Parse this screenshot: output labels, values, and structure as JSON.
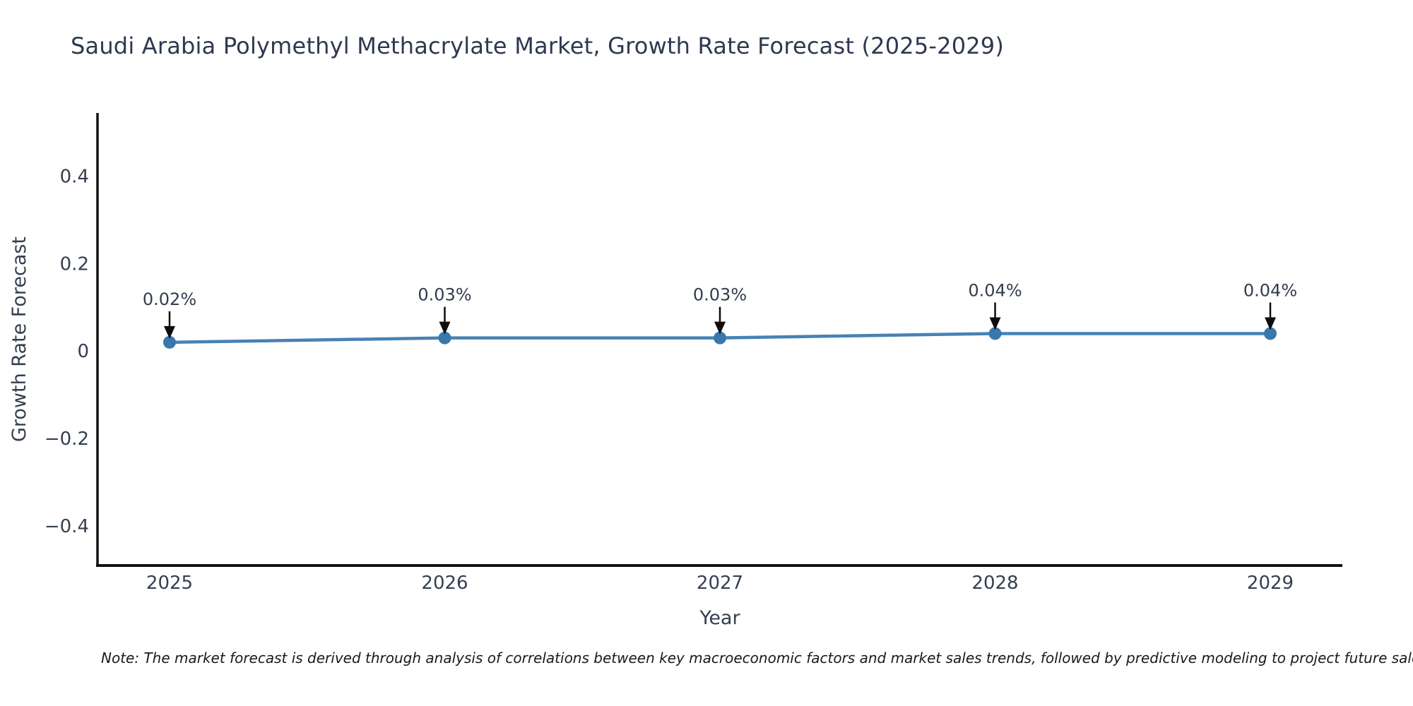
{
  "title": {
    "text": "Saudi Arabia Polymethyl Methacrylate Market, Growth Rate Forecast (2025-2029)",
    "color": "#2e3850"
  },
  "note": {
    "text": "Note: The market forecast is derived through analysis of correlations between key macroeconomic factors and market sales trends, followed by predictive modeling to project future sales"
  },
  "chart_data": {
    "type": "line",
    "title": "Saudi Arabia Polymethyl Methacrylate Market, Growth Rate Forecast (2025-2029)",
    "x": [
      2025,
      2026,
      2027,
      2028,
      2029
    ],
    "xtick_labels": [
      "2025",
      "2026",
      "2027",
      "2028",
      "2029"
    ],
    "series": [
      {
        "name": "Growth Rate Forecast",
        "values": [
          0.02,
          0.03,
          0.03,
          0.04,
          0.04
        ]
      }
    ],
    "point_labels": [
      "0.02%",
      "0.03%",
      "0.03%",
      "0.04%",
      "0.04%"
    ],
    "xlabel": "Year",
    "ylabel": "Growth Rate Forecast",
    "ylim": [
      -0.49,
      0.544
    ],
    "yticks": [
      0.4,
      0.2,
      0,
      -0.2,
      -0.4
    ],
    "ytick_labels": [
      "0.4",
      "0.2",
      "0",
      "−0.2",
      "−0.4"
    ],
    "grid": false,
    "legend": "none",
    "line_color": "#4682b4",
    "marker_color": "#3878ac",
    "axis_color": "#111111",
    "tick_label_color": "#363f4f",
    "axis_label_color": "#363f4f",
    "annotation_text_color": "#333c4d",
    "arrow_color": "#0d0d0d"
  }
}
